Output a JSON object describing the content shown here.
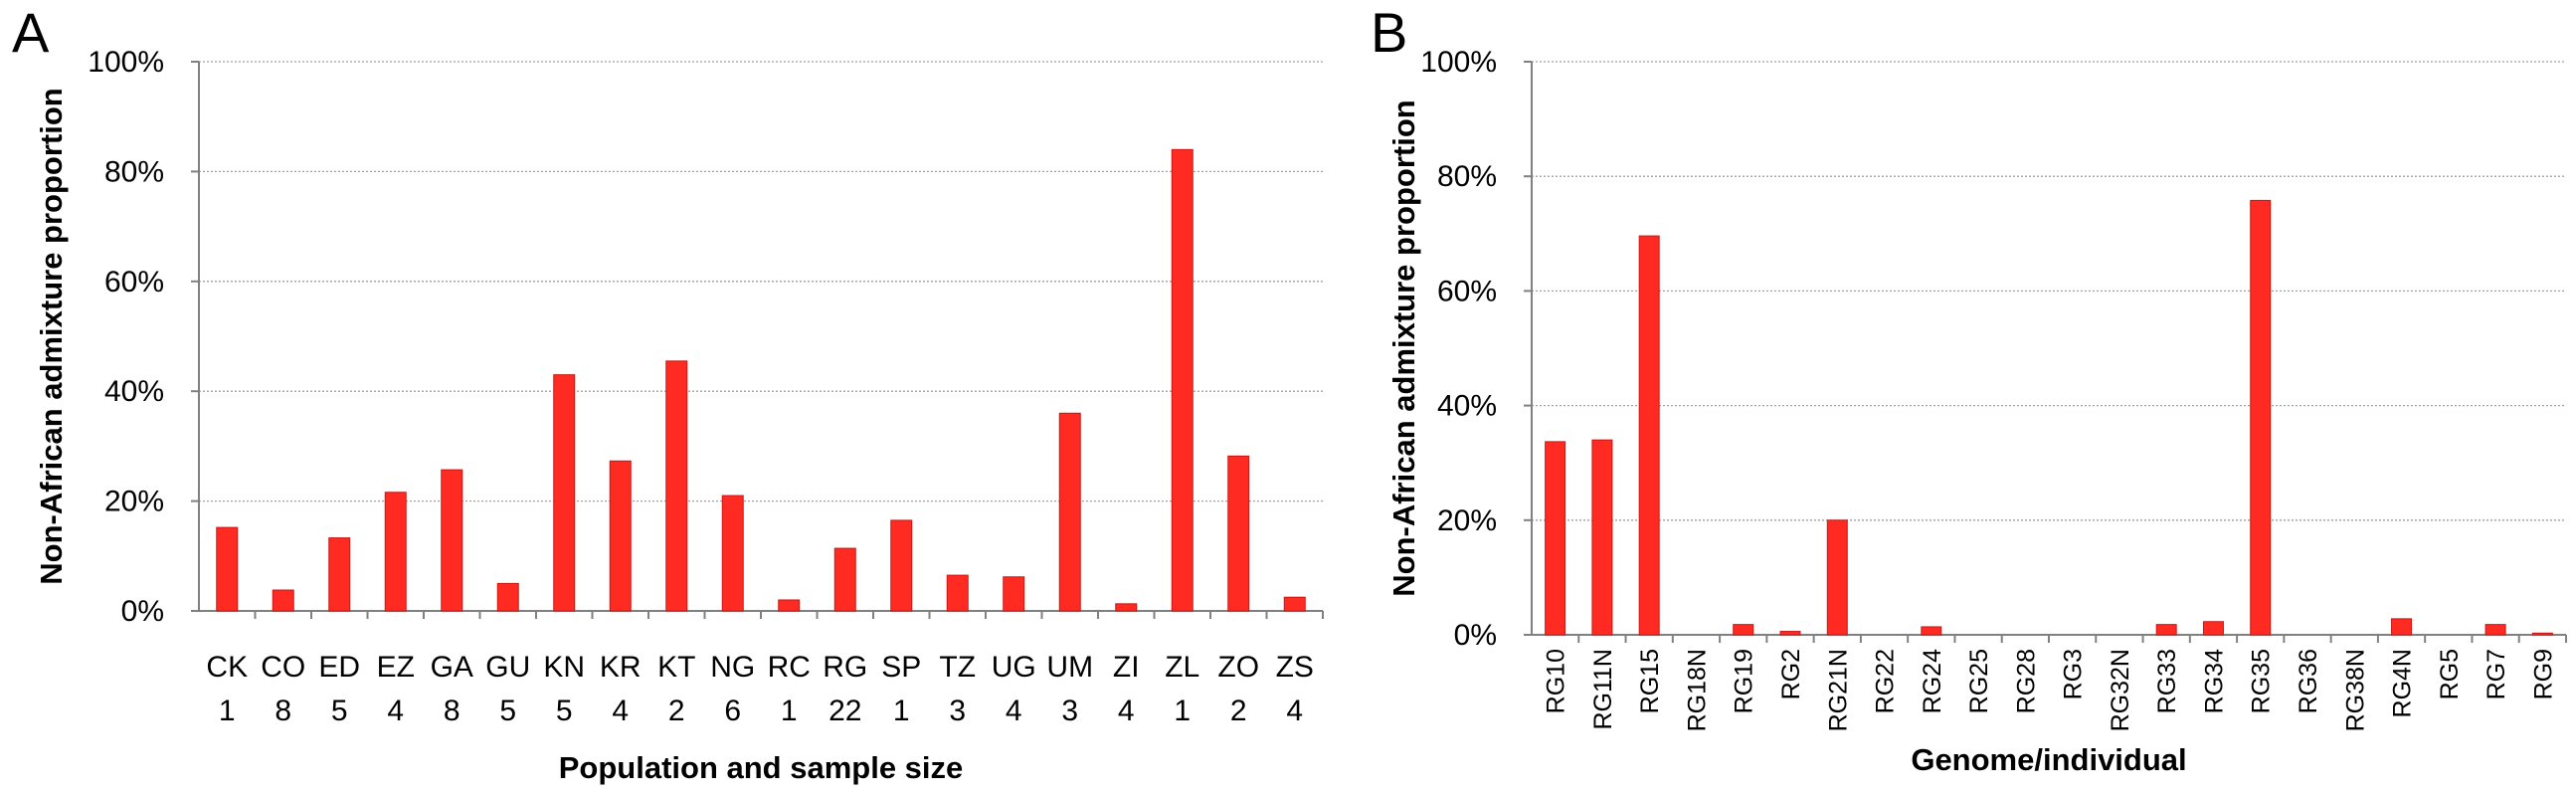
{
  "colors": {
    "bar": "#ff2a22",
    "bar_edge": "#c81814",
    "grid": "#a0a0a0",
    "axis": "#808080"
  },
  "chart_data": [
    {
      "panel_label": "A",
      "type": "bar",
      "ylabel": "Non-African admixture proportion",
      "xlabel": "Population and sample size",
      "ylim": [
        0,
        100
      ],
      "yticks": [
        "0%",
        "20%",
        "40%",
        "60%",
        "80%",
        "100%"
      ],
      "grid": true,
      "categories": [
        "CK",
        "CO",
        "ED",
        "EZ",
        "GA",
        "GU",
        "KN",
        "KR",
        "KT",
        "NG",
        "RC",
        "RG",
        "SP",
        "TZ",
        "UG",
        "UM",
        "ZI",
        "ZL",
        "ZO",
        "ZS"
      ],
      "sample_sizes": [
        "1",
        "8",
        "5",
        "4",
        "8",
        "5",
        "5",
        "4",
        "2",
        "6",
        "1",
        "22",
        "1",
        "3",
        "4",
        "3",
        "4",
        "1",
        "2",
        "4"
      ],
      "values": [
        15.2,
        3.8,
        13.3,
        21.6,
        25.7,
        5.0,
        43.0,
        27.3,
        45.5,
        21.0,
        2.0,
        11.4,
        16.5,
        6.5,
        6.2,
        36.0,
        1.3,
        84.0,
        28.2,
        2.5
      ]
    },
    {
      "panel_label": "B",
      "type": "bar",
      "ylabel": "Non-African admixture proportion",
      "xlabel": "Genome/individual",
      "ylim": [
        0,
        100
      ],
      "yticks": [
        "0%",
        "20%",
        "40%",
        "60%",
        "80%",
        "100%"
      ],
      "grid": true,
      "categories": [
        "RG10",
        "RG11N",
        "RG15",
        "RG18N",
        "RG19",
        "RG2",
        "RG21N",
        "RG22",
        "RG24",
        "RG25",
        "RG28",
        "RG3",
        "RG32N",
        "RG33",
        "RG34",
        "RG35",
        "RG36",
        "RG38N",
        "RG4N",
        "RG5",
        "RG7",
        "RG9"
      ],
      "values": [
        33.7,
        34.0,
        69.6,
        0,
        1.8,
        0.6,
        20.0,
        0,
        1.4,
        0,
        0,
        0,
        0,
        1.8,
        2.3,
        75.8,
        0,
        0,
        2.8,
        0,
        1.8,
        0.3
      ]
    }
  ]
}
